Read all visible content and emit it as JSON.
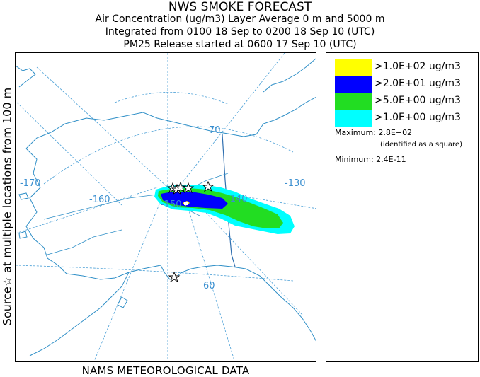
{
  "titles": {
    "line1": "NWS SMOKE FORECAST",
    "line2": "Air Concentration (ug/m3) Layer Average    0 m and  5000 m",
    "line3": "Integrated from 0100 18 Sep to 0200 18 Sep 10 (UTC)",
    "line4": "PM25 Release started at 0600 17 Sep 10 (UTC)"
  },
  "side_label": "Source☆ at multiple locations from  100 m",
  "bottom_label": "NAMS METEOROLOGICAL DATA",
  "map": {
    "longitude_labels": [
      "-170",
      "-160",
      "-150",
      "-140",
      "-130"
    ],
    "latitude_labels": [
      "70",
      "60"
    ],
    "colors": {
      "ocean_bg": "#ffffff",
      "coast": "#2f8fc7",
      "graticule": "#4a9fd6",
      "border": "#2f6fb0",
      "label": "#3a8fd0"
    }
  },
  "legend": {
    "items": [
      {
        "label": ">1.0E+02 ug/m3",
        "color": "#ffff00"
      },
      {
        "label": ">2.0E+01 ug/m3",
        "color": "#0000ff"
      },
      {
        "label": ">5.0E+00 ug/m3",
        "color": "#22dd22"
      },
      {
        "label": ">1.0E+00 ug/m3",
        "color": "#00ffff"
      }
    ],
    "maximum_label": "Maximum: 2.8E+02",
    "maximum_note": "(identified as a square)",
    "minimum_label": "Minimum: 2.4E-11"
  }
}
